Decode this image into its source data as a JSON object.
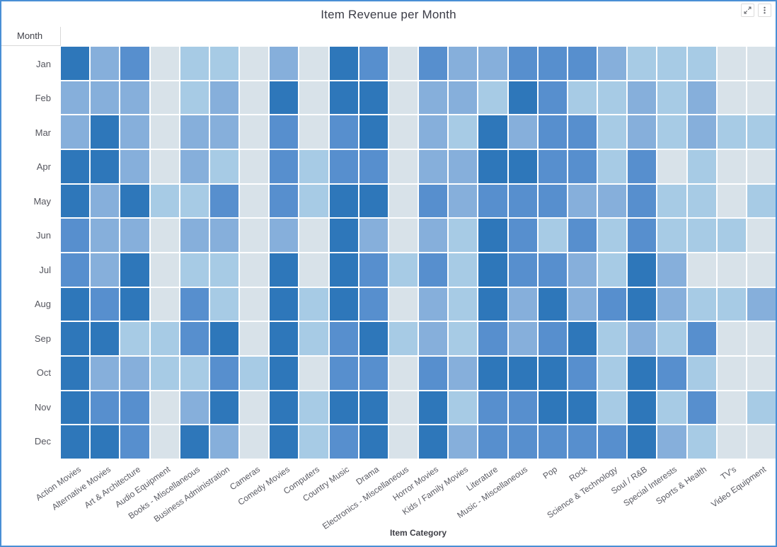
{
  "window": {
    "background": "#ffffff",
    "border_color": "#4a8fd5"
  },
  "header": {
    "title": "Item Revenue per Month",
    "icons": [
      "expand-diagonal-icon",
      "kebab-menu-icon"
    ]
  },
  "chart_data": {
    "type": "heatmap",
    "title": "Item Revenue per Month",
    "xlabel": "Item Category",
    "ylabel": "Month",
    "grid": "white 2px gaps between cells",
    "legend": "none",
    "x_categories": [
      "Action Movies",
      "Alternative Movies",
      "Art & Architecture",
      "Audio Equipment",
      "Books - Miscellaneous",
      "Business Administration",
      "Cameras",
      "Comedy Movies",
      "Computers",
      "Country Music",
      "Drama",
      "Electronics - Miscellaneous",
      "Horror Movies",
      "Kids / Family Movies",
      "Literature",
      "Music - Miscellaneous",
      "Pop",
      "Rock",
      "Science & Technology",
      "Soul / R&B",
      "Special Interests",
      "Sports & Health",
      "TV's",
      "Video Equipment"
    ],
    "y_categories": [
      "Jan",
      "Feb",
      "Mar",
      "Apr",
      "May",
      "Jun",
      "Jul",
      "Aug",
      "Sep",
      "Oct",
      "Nov",
      "Dec"
    ],
    "color_scale": {
      "description": "Sequential blues; intensity level 1 = lowest revenue, 5 = highest revenue (no numeric labels shown in chart)",
      "palette": {
        "1": "#d8e2e9",
        "2": "#a7cbe5",
        "3": "#86afdb",
        "4": "#578fce",
        "5": "#2e77ba"
      }
    },
    "values_levels": [
      [
        5,
        3,
        4,
        1,
        2,
        2,
        1,
        3,
        1,
        5,
        4,
        1,
        4,
        3,
        3,
        4,
        4,
        4,
        3,
        2,
        2,
        2,
        1,
        1
      ],
      [
        3,
        3,
        3,
        1,
        2,
        3,
        1,
        5,
        1,
        5,
        5,
        1,
        3,
        3,
        2,
        5,
        4,
        2,
        2,
        3,
        2,
        3,
        1,
        1
      ],
      [
        3,
        5,
        3,
        1,
        3,
        3,
        1,
        4,
        1,
        4,
        5,
        1,
        3,
        2,
        5,
        3,
        4,
        4,
        2,
        3,
        2,
        3,
        2,
        2
      ],
      [
        5,
        5,
        3,
        1,
        3,
        2,
        1,
        4,
        2,
        4,
        4,
        1,
        3,
        3,
        5,
        5,
        4,
        4,
        2,
        4,
        1,
        2,
        1,
        1
      ],
      [
        5,
        3,
        5,
        2,
        2,
        4,
        1,
        4,
        2,
        5,
        5,
        1,
        4,
        3,
        4,
        4,
        4,
        3,
        3,
        4,
        2,
        2,
        1,
        2
      ],
      [
        4,
        3,
        3,
        1,
        3,
        3,
        1,
        3,
        1,
        5,
        3,
        1,
        3,
        2,
        5,
        4,
        2,
        4,
        2,
        4,
        2,
        2,
        2,
        1
      ],
      [
        4,
        3,
        5,
        1,
        2,
        2,
        1,
        5,
        1,
        5,
        4,
        2,
        4,
        2,
        5,
        4,
        4,
        3,
        2,
        5,
        3,
        1,
        1,
        1
      ],
      [
        5,
        4,
        5,
        1,
        4,
        2,
        1,
        5,
        2,
        5,
        4,
        1,
        3,
        2,
        5,
        3,
        5,
        3,
        4,
        5,
        3,
        2,
        2,
        3
      ],
      [
        5,
        5,
        2,
        2,
        4,
        5,
        1,
        5,
        2,
        4,
        5,
        2,
        3,
        2,
        4,
        3,
        4,
        5,
        2,
        3,
        2,
        4,
        1,
        1
      ],
      [
        5,
        3,
        3,
        2,
        2,
        4,
        2,
        5,
        1,
        4,
        4,
        1,
        4,
        3,
        5,
        5,
        5,
        4,
        2,
        5,
        4,
        2,
        1,
        1
      ],
      [
        5,
        4,
        4,
        1,
        3,
        5,
        1,
        5,
        2,
        5,
        5,
        1,
        5,
        2,
        4,
        4,
        5,
        5,
        2,
        5,
        2,
        4,
        1,
        2
      ],
      [
        5,
        5,
        4,
        1,
        5,
        3,
        1,
        5,
        2,
        4,
        5,
        1,
        5,
        3,
        4,
        4,
        4,
        4,
        4,
        5,
        3,
        2,
        1,
        1
      ]
    ]
  }
}
